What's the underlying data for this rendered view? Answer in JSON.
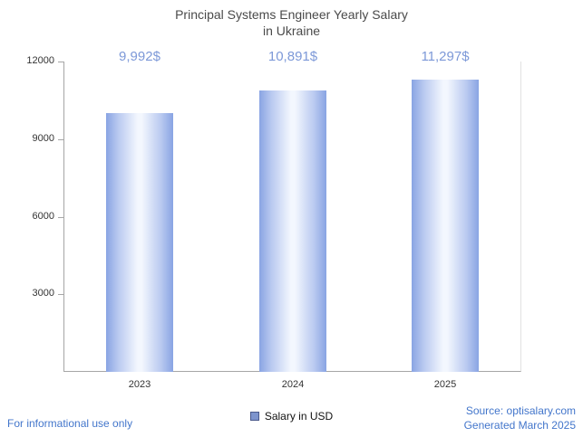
{
  "title_lines": [
    "Principal Systems Engineer Yearly Salary",
    "in Ukraine"
  ],
  "chart_data": {
    "type": "bar",
    "title": "Principal Systems Engineer Yearly Salary in Ukraine",
    "categories": [
      "2023",
      "2024",
      "2025"
    ],
    "values": [
      9992,
      10891,
      11297
    ],
    "value_labels": [
      "9,992$",
      "10,891$",
      "11,297$"
    ],
    "xlabel": "",
    "ylabel": "",
    "ylim": [
      0,
      12000
    ],
    "yticks": [
      3000,
      6000,
      9000,
      12000
    ],
    "grid": false,
    "legend_position": "bottom",
    "series_name": "Salary in USD"
  },
  "legend": {
    "label": "Salary in USD",
    "swatch_color": "#7d94cd"
  },
  "footer": {
    "note": "For informational use only",
    "source": "Source: optisalary.com",
    "generated": "Generated March 2025"
  },
  "colors": {
    "bar_edge": "#89a4e3",
    "bar_center": "#f3f7fe",
    "value_label": "#7d99d8",
    "footer_text": "#4376cb",
    "title_text": "#4a4a4a",
    "axis_line": "#a6a6a6"
  }
}
